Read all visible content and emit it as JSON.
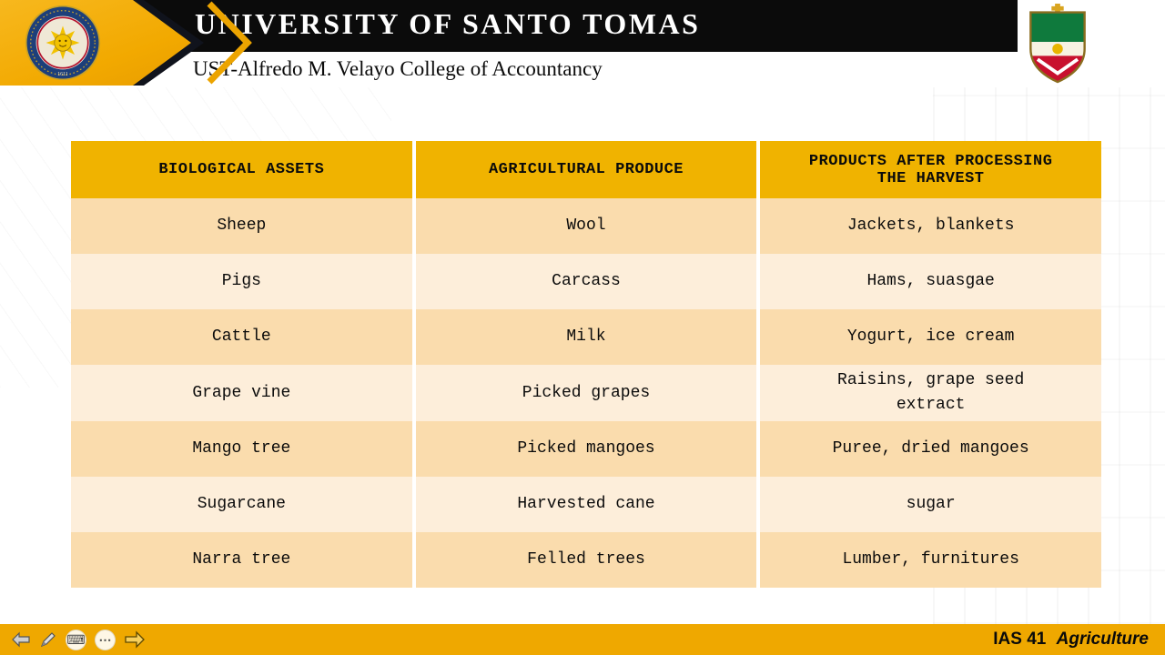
{
  "theme": {
    "gold": "#F0B300",
    "rowDark": "#FADCAD",
    "rowLight": "#FDEEDA",
    "footerGold": "#EFA800",
    "emblemGold": "#F2A900",
    "bandBlack": "#0B0B0B"
  },
  "header": {
    "university": "UNIVERSITY OF SANTO TOMAS",
    "college": "UST-Alfredo M. Velayo College of Accountancy",
    "seal_year": "1611"
  },
  "table": {
    "columns": [
      "BIOLOGICAL ASSETS",
      "AGRICULTURAL PRODUCE",
      "PRODUCTS AFTER PROCESSING\nTHE HARVEST"
    ],
    "rows": [
      [
        "Sheep",
        "Wool",
        "Jackets, blankets"
      ],
      [
        "Pigs",
        "Carcass",
        "Hams, suasgae"
      ],
      [
        "Cattle",
        "Milk",
        "Yogurt, ice cream"
      ],
      [
        "Grape vine",
        "Picked grapes",
        "Raisins, grape seed\nextract"
      ],
      [
        "Mango tree",
        "Picked mangoes",
        "Puree, dried mangoes"
      ],
      [
        "Sugarcane",
        "Harvested cane",
        "sugar"
      ],
      [
        "Narra tree",
        "Felled trees",
        "Lumber, furnitures"
      ]
    ]
  },
  "footer": {
    "course_code": "IAS 41",
    "course_title": "Agriculture",
    "icons": [
      {
        "name": "back-arrow-icon"
      },
      {
        "name": "pencil-icon"
      },
      {
        "name": "keyboard-icon",
        "glyph": "⌨"
      },
      {
        "name": "ellipsis-icon",
        "glyph": "⋯"
      },
      {
        "name": "forward-arrow-icon"
      }
    ]
  }
}
